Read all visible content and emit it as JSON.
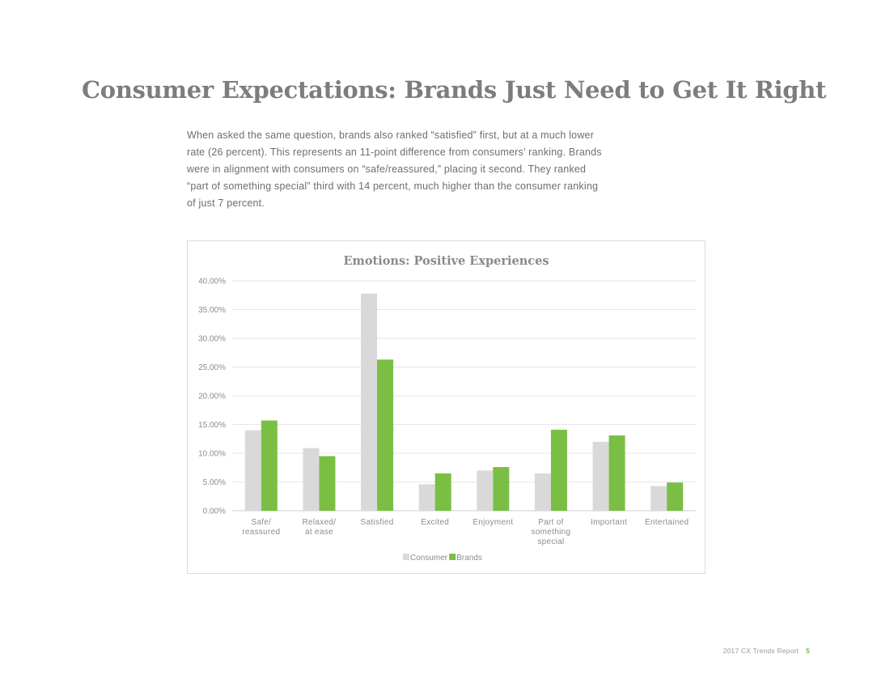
{
  "page": {
    "title": "Consumer Expectations: Brands Just Need to Get It Right",
    "intro": "When asked the same question, brands also ranked “satisfied” first, but at a much lower rate (26 percent). This represents an 11-point difference from consumers’ ranking. Brands were in alignment with consumers on “safe/reassured,” placing it second. They ranked “part of something special” third with 14 percent, much higher than the consumer ranking of just 7 percent.",
    "footer_label": "2017 CX Trends Report",
    "page_number": "5"
  },
  "chart_data": {
    "type": "bar",
    "title": "Emotions: Positive Experiences",
    "categories": [
      [
        "Safe/",
        "reassured"
      ],
      [
        "Relaxed/",
        "at ease"
      ],
      [
        "Satisfied"
      ],
      [
        "Excited"
      ],
      [
        "Enjoyment"
      ],
      [
        "Part of",
        "something",
        "special"
      ],
      [
        "Important"
      ],
      [
        "Entertained"
      ]
    ],
    "series": [
      {
        "name": "Consumer",
        "color": "#d9d9d9",
        "values": [
          14.0,
          10.9,
          37.8,
          4.6,
          7.0,
          6.5,
          12.0,
          4.3
        ]
      },
      {
        "name": "Brands",
        "color": "#7abf43",
        "values": [
          15.7,
          9.5,
          26.3,
          6.5,
          7.6,
          14.1,
          13.1,
          4.9
        ]
      }
    ],
    "yticks": [
      "0.00%",
      "5.00%",
      "10.00%",
      "15.00%",
      "20.00%",
      "25.00%",
      "30.00%",
      "35.00%",
      "40.00%"
    ],
    "ylim": [
      0,
      40
    ],
    "grid": true,
    "legend_position": "bottom"
  }
}
